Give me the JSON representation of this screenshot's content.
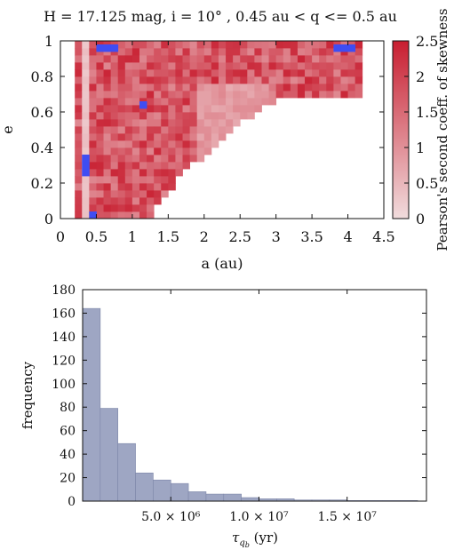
{
  "figure": {
    "title": "H = 17.125 mag, i = 10° , 0.45 au < q <= 0.5 au"
  },
  "colors": {
    "low": "#f1dcdd",
    "high": "#c81e30",
    "blue": "#3f4df2",
    "hist_fill": "#9ea6c3",
    "hist_edge": "#7d86a8"
  },
  "chart_data": [
    {
      "type": "heatmap",
      "title": "H = 17.125 mag, i = 10° , 0.45 au < q <= 0.5 au",
      "xlabel": "a (au)",
      "ylabel": "e",
      "xlim": [
        0,
        4.5
      ],
      "ylim": [
        0,
        1
      ],
      "xticks": [
        "0",
        "0.5",
        "1",
        "1.5",
        "2",
        "2.5",
        "3",
        "3.5",
        "4",
        "4.5"
      ],
      "yticks": [
        "0",
        "0.2",
        "0.4",
        "0.6",
        "0.8",
        "1"
      ],
      "colorbar": {
        "label": "Pearson's second coeff. of skewness",
        "range": [
          0,
          2.5
        ],
        "ticks": [
          "0",
          "0.5",
          "1",
          "1.5",
          "2",
          "2.5"
        ]
      },
      "grid": false,
      "cell_size": [
        0.1,
        0.04
      ],
      "region_boundary": [
        [
          0.25,
          0.98
        ],
        [
          0.75,
          1.0
        ],
        [
          4.2,
          1.0
        ],
        [
          4.2,
          0.7
        ],
        [
          3.0,
          0.67
        ],
        [
          2.6,
          0.56
        ],
        [
          2.2,
          0.42
        ],
        [
          1.7,
          0.25
        ],
        [
          1.5,
          0.15
        ],
        [
          1.3,
          0.05
        ],
        [
          1.3,
          0.0
        ],
        [
          0.25,
          0.0
        ]
      ],
      "low_value_column": {
        "x": [
          0.3,
          0.4
        ],
        "value": 0.25
      },
      "light_band": {
        "x": [
          1.9,
          2.9
        ],
        "value": 0.6
      },
      "blue_cells": [
        {
          "a": 0.55,
          "e": 0.96
        },
        {
          "a": 0.65,
          "e": 0.96
        },
        {
          "a": 0.75,
          "e": 0.96
        },
        {
          "a": 1.15,
          "e": 0.64
        },
        {
          "a": 0.35,
          "e": 0.34
        },
        {
          "a": 0.35,
          "e": 0.3
        },
        {
          "a": 0.35,
          "e": 0.26
        },
        {
          "a": 0.45,
          "e": 0.02
        },
        {
          "a": 3.85,
          "e": 0.96
        },
        {
          "a": 3.95,
          "e": 0.96
        },
        {
          "a": 4.05,
          "e": 0.96
        }
      ]
    },
    {
      "type": "bar",
      "xlabel": "τ_qb (yr)",
      "ylabel": "frequency",
      "xlim": [
        0,
        19500000
      ],
      "ylim": [
        0,
        180
      ],
      "xticks": [
        {
          "value": 5000000,
          "label": "5.0 × 10⁶"
        },
        {
          "value": 10000000,
          "label": "1.0 × 10⁷"
        },
        {
          "value": 15000000,
          "label": "1.5 × 10⁷"
        }
      ],
      "yticks": [
        "0",
        "20",
        "40",
        "60",
        "80",
        "100",
        "120",
        "140",
        "160",
        "180"
      ],
      "bin_width": 1000000,
      "bin_starts": [
        0,
        1000000,
        2000000,
        3000000,
        4000000,
        5000000,
        6000000,
        7000000,
        8000000,
        9000000,
        10000000,
        11000000,
        12000000,
        13000000,
        14000000,
        15000000,
        16000000,
        17000000,
        18000000
      ],
      "values": [
        164,
        79,
        49,
        24,
        18,
        15,
        8,
        6,
        6,
        3,
        2,
        2,
        1,
        1,
        1,
        0.5,
        0.5,
        0.5,
        0.5
      ]
    }
  ]
}
